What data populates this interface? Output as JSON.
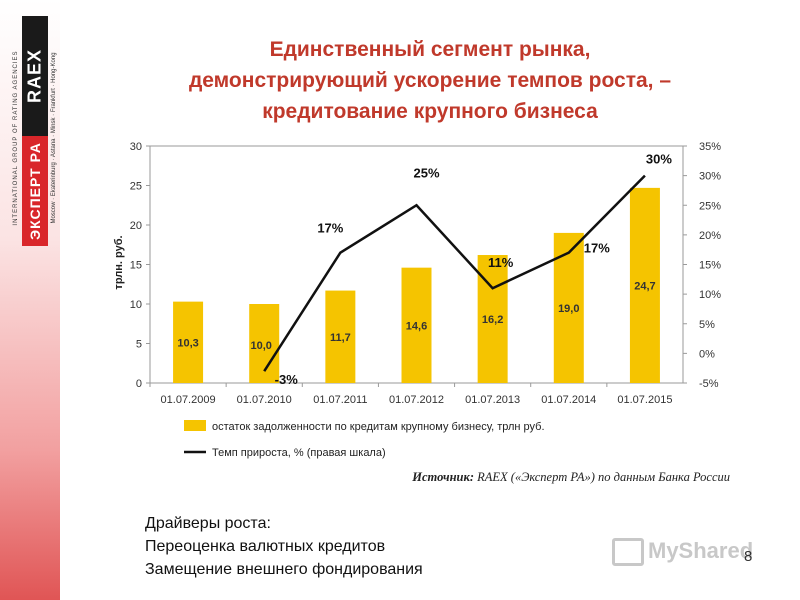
{
  "logo": {
    "top_line": "INTERNATIONAL GROUP OF RATING AGENCIES",
    "raex": "RAEX",
    "expert": "ЭКСПЕРТ РА",
    "agency": "РЕЙТИНГОВОЕ АГЕНТСТВО",
    "cities": "Moscow · Ekaterinburg · Astana · Minsk · Frankfurt · Hong-Kong",
    "colors": {
      "black": "#1a1a1a",
      "red": "#d9262a"
    }
  },
  "title_lines": [
    "Единственный сегмент рынка,",
    "демонстрирующий ускорение темпов роста, –",
    "кредитование крупного бизнеса"
  ],
  "chart_data": {
    "type": "bar",
    "categories": [
      "01.07.2009",
      "01.07.2010",
      "01.07.2011",
      "01.07.2012",
      "01.07.2013",
      "01.07.2014",
      "01.07.2015"
    ],
    "series": [
      {
        "name": "остаток задолженности по кредитам крупному бизнесу, трлн руб.",
        "type": "bar",
        "axis": "left",
        "color": "#f5c400",
        "values": [
          10.3,
          10.0,
          11.7,
          14.6,
          16.2,
          19.0,
          24.7
        ],
        "labels": [
          "10,3",
          "10,0",
          "11,7",
          "14,6",
          "16,2",
          "19,0",
          "24,7"
        ]
      },
      {
        "name": "Темп прироста, % (правая шкала)",
        "type": "line",
        "axis": "right",
        "color": "#111111",
        "values": [
          null,
          -3,
          17,
          25,
          11,
          17,
          30
        ],
        "labels": [
          "",
          "-3%",
          "17%",
          "25%",
          "11%",
          "17%",
          "30%"
        ]
      }
    ],
    "ylabel": "трлн. руб.",
    "ylim": [
      0,
      30
    ],
    "y_ticks": [
      "0",
      "5",
      "10",
      "15",
      "20",
      "25",
      "30"
    ],
    "y2lim": [
      -5,
      35
    ],
    "y2_ticks": [
      "-5%",
      "0%",
      "5%",
      "10%",
      "15%",
      "20%",
      "25%",
      "30%",
      "35%"
    ],
    "legend": "bottom",
    "grid": false
  },
  "source": {
    "prefix": "Источник:",
    "text": " RAEX («Эксперт РА») по данным Банка России"
  },
  "drivers": {
    "heading": "Драйверы роста:",
    "items": [
      "Переоценка валютных кредитов",
      "Замещение внешнего фондирования"
    ]
  },
  "watermark": "MyShared",
  "page_number": "8"
}
